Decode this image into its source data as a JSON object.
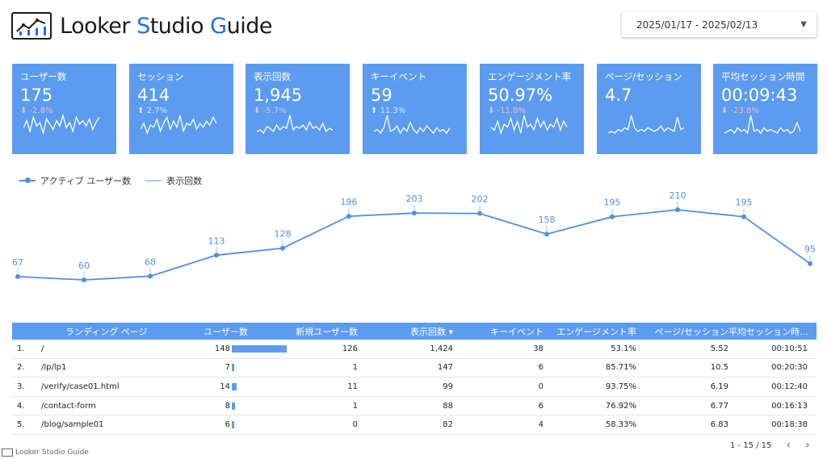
{
  "header": {
    "brand": {
      "part1": "Looker ",
      "part2": "S",
      "part3": "tudio ",
      "part4": "G",
      "part5": "uide"
    },
    "date_range": "2025/01/17 - 2025/02/13"
  },
  "kpis": [
    {
      "label": "ユーザー数",
      "value": "175",
      "delta": "-2.8%",
      "dir": "down",
      "spark": [
        8,
        12,
        6,
        14,
        9,
        11,
        5,
        13,
        10,
        7,
        12,
        9,
        15,
        8,
        11,
        6,
        14,
        10,
        12,
        9,
        13,
        7,
        11,
        14
      ]
    },
    {
      "label": "セッション",
      "value": "414",
      "delta": "2.7%",
      "dir": "up",
      "spark": [
        9,
        12,
        7,
        11,
        10,
        14,
        8,
        12,
        15,
        9,
        13,
        10,
        16,
        8,
        12,
        11,
        14,
        9,
        12,
        10,
        13,
        11,
        15,
        12
      ]
    },
    {
      "label": "表示回数",
      "value": "1,945",
      "delta": "-5.7%",
      "dir": "down",
      "spark": [
        6,
        7,
        5,
        9,
        8,
        6,
        10,
        7,
        9,
        8,
        16,
        7,
        9,
        8,
        10,
        7,
        12,
        8,
        9,
        7,
        11,
        6,
        8,
        7
      ]
    },
    {
      "label": "キーイベント",
      "value": "59",
      "delta": "11.3%",
      "dir": "up",
      "spark": [
        7,
        8,
        6,
        9,
        16,
        7,
        8,
        10,
        6,
        9,
        7,
        12,
        8,
        6,
        9,
        7,
        10,
        8,
        6,
        9,
        7,
        8,
        6,
        9
      ]
    },
    {
      "label": "エンゲージメント率",
      "value": "50.97%",
      "delta": "-11.8%",
      "dir": "down",
      "spark": [
        10,
        9,
        12,
        8,
        11,
        10,
        13,
        9,
        12,
        8,
        14,
        10,
        11,
        9,
        13,
        10,
        12,
        9,
        11,
        10,
        13,
        9,
        12,
        10
      ]
    },
    {
      "label": "ページ/セッション",
      "value": "4.7",
      "delta": "",
      "dir": "none",
      "spark": [
        6,
        7,
        6,
        8,
        7,
        9,
        8,
        16,
        9,
        7,
        8,
        7,
        9,
        8,
        7,
        8,
        10,
        7,
        9,
        8,
        7,
        15,
        8,
        9
      ]
    },
    {
      "label": "平均セッション時間",
      "value": "00:09:43",
      "delta": "-23.8%",
      "dir": "down",
      "spark": [
        6,
        7,
        8,
        6,
        9,
        7,
        8,
        6,
        16,
        7,
        8,
        6,
        9,
        7,
        8,
        7,
        6,
        9,
        7,
        8,
        6,
        7,
        12,
        7
      ]
    }
  ],
  "legend": {
    "series1": "アクティブ ユーザー数",
    "series2": "表示回数"
  },
  "chart_data": {
    "type": "line",
    "series": [
      {
        "name": "アクティブ ユーザー数",
        "values": [
          67,
          60,
          68,
          113,
          128,
          196,
          203,
          202,
          158,
          195,
          210,
          195,
          95
        ]
      }
    ],
    "grid": false
  },
  "table": {
    "headers": {
      "page": "ランディング ページ",
      "users": "ユーザー数",
      "new_users": "新規ユーザー数",
      "views": "表示回数 ▾",
      "key_events": "キーイベント",
      "engagement": "エンゲージメント率",
      "pages_per_session": "ページ/セッション",
      "avg_duration": "平均セッション時..."
    },
    "rows": [
      {
        "idx": "1.",
        "page": "/",
        "users": "148",
        "users_n": 148,
        "new_users": "126",
        "views": "1,424",
        "key": "38",
        "eng": "53.1%",
        "pps": "5.52",
        "dur": "00:10:51"
      },
      {
        "idx": "2.",
        "page": "/lp/lp1",
        "users": "7",
        "users_n": 7,
        "new_users": "1",
        "views": "147",
        "key": "6",
        "eng": "85.71%",
        "pps": "10.5",
        "dur": "00:20:30"
      },
      {
        "idx": "3.",
        "page": "/verify/case01.html",
        "users": "14",
        "users_n": 14,
        "new_users": "11",
        "views": "99",
        "key": "0",
        "eng": "93.75%",
        "pps": "6.19",
        "dur": "00:12:40"
      },
      {
        "idx": "4.",
        "page": "/contact-form",
        "users": "8",
        "users_n": 8,
        "new_users": "1",
        "views": "88",
        "key": "6",
        "eng": "76.92%",
        "pps": "6.77",
        "dur": "00:16:13"
      },
      {
        "idx": "5.",
        "page": "/blog/sample01",
        "users": "6",
        "users_n": 6,
        "new_users": "0",
        "views": "82",
        "key": "4",
        "eng": "58.33%",
        "pps": "6.83",
        "dur": "00:18:38"
      }
    ]
  },
  "pager": {
    "text": "1 - 15 / 15",
    "prev": "‹",
    "next": "›"
  },
  "footer": {
    "brand": "Looker Studio Guide"
  },
  "colors": {
    "tile": "#5b9cf0",
    "line": "#4e8fe6",
    "brand_blue": "#1f6fd1"
  }
}
